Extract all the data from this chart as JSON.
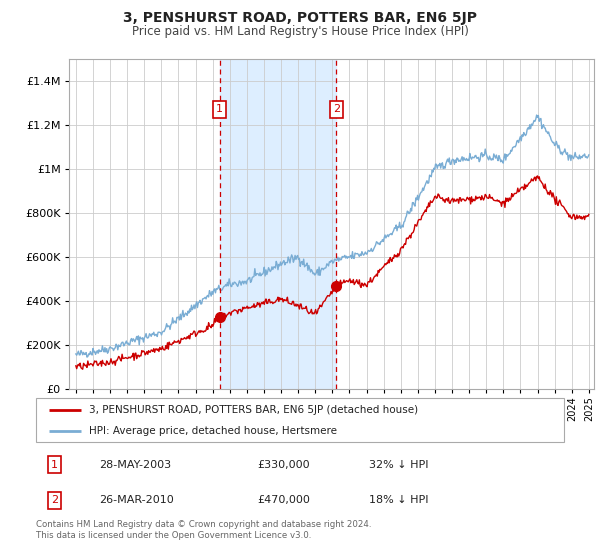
{
  "title": "3, PENSHURST ROAD, POTTERS BAR, EN6 5JP",
  "subtitle": "Price paid vs. HM Land Registry's House Price Index (HPI)",
  "legend_line1": "3, PENSHURST ROAD, POTTERS BAR, EN6 5JP (detached house)",
  "legend_line2": "HPI: Average price, detached house, Hertsmere",
  "sale1_label": "1",
  "sale1_date": "28-MAY-2003",
  "sale1_price": "£330,000",
  "sale1_hpi": "32% ↓ HPI",
  "sale2_label": "2",
  "sale2_date": "26-MAR-2010",
  "sale2_price": "£470,000",
  "sale2_hpi": "18% ↓ HPI",
  "footer": "Contains HM Land Registry data © Crown copyright and database right 2024.\nThis data is licensed under the Open Government Licence v3.0.",
  "red_color": "#cc0000",
  "blue_color": "#7aadd4",
  "shade_color": "#ddeeff",
  "ylim": [
    0,
    1500000
  ],
  "sale1_year": 2003.41,
  "sale1_value": 330000,
  "sale2_year": 2010.23,
  "sale2_value": 470000,
  "xmin": 1994.6,
  "xmax": 2025.3,
  "background_color": "#ffffff",
  "grid_color": "#cccccc"
}
